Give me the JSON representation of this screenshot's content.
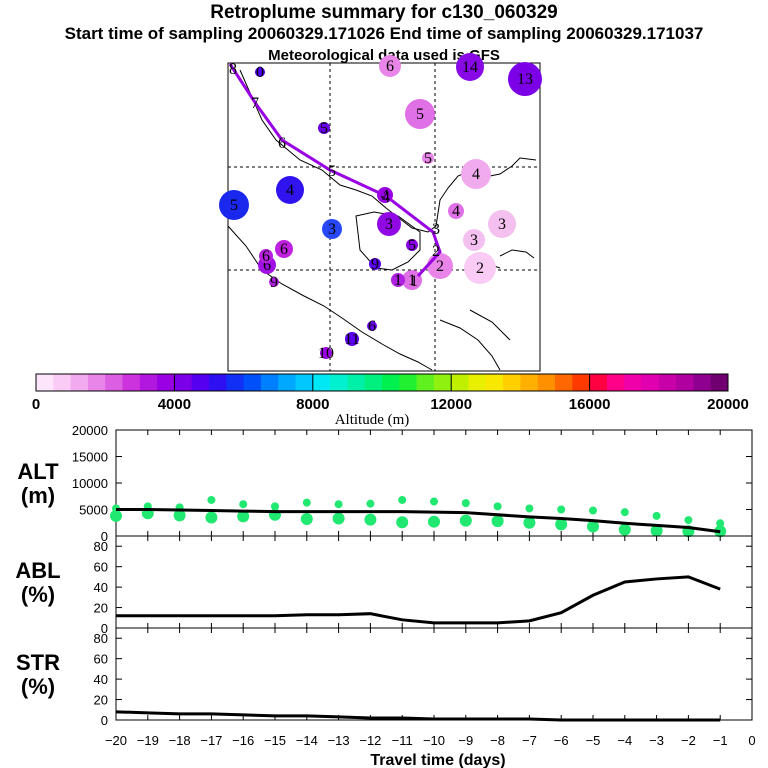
{
  "header": {
    "title": "Retroplume summary for c130_060329",
    "subtitle": "Start time of sampling 20060329.171026     End time of sampling 20060329.171037",
    "met": "Meteorological data used is GFS"
  },
  "colorbar": {
    "label": "Altitude (m)",
    "ticks": [
      "0",
      "4000",
      "8000",
      "12000",
      "16000",
      "20000"
    ],
    "colors": [
      "#fde6fb",
      "#f9cbf5",
      "#f2aaee",
      "#e985e8",
      "#dc5ee2",
      "#cc33dd",
      "#b217e0",
      "#9a00e4",
      "#7b00e8",
      "#5500ee",
      "#2f10f2",
      "#1030f6",
      "#0050fa",
      "#0080ff",
      "#00a8ff",
      "#00c8ff",
      "#00e8f4",
      "#00f0d0",
      "#00f0a8",
      "#00f080",
      "#00f050",
      "#20f030",
      "#60f020",
      "#90f010",
      "#c0f000",
      "#e8f000",
      "#f8e800",
      "#ffd000",
      "#ffb000",
      "#ff9000",
      "#ff6800",
      "#ff3a00",
      "#ff0040",
      "#ff0088",
      "#f000a8",
      "#e000b0",
      "#c800a8",
      "#b000a0",
      "#900090",
      "#700070"
    ]
  },
  "map_labels": {
    "trajectory": [
      "1",
      "2",
      "3",
      "4",
      "5",
      "6",
      "7",
      "8"
    ],
    "plume": [
      {
        "label": "5",
        "color": "#1a28ee"
      },
      {
        "label": "4",
        "color": "#3014f0"
      },
      {
        "label": "3",
        "color": "#2848f8"
      },
      {
        "label": "3",
        "color": "#9008e4"
      },
      {
        "label": "4",
        "color": "#9a00e4"
      },
      {
        "label": "6",
        "color": "#c020e0"
      },
      {
        "label": "5",
        "color": "#e070e6"
      },
      {
        "label": "4",
        "color": "#f2aaee"
      },
      {
        "label": "3",
        "color": "#f4c0f0"
      },
      {
        "label": "3",
        "color": "#f4c0f0"
      },
      {
        "label": "2",
        "color": "#f9cbf5"
      },
      {
        "label": "2",
        "color": "#e985e8"
      },
      {
        "label": "1",
        "color": "#e070e6"
      },
      {
        "label": "1",
        "color": "#b020e0"
      },
      {
        "label": "14",
        "color": "#8808e6"
      },
      {
        "label": "13",
        "color": "#7b00e8"
      },
      {
        "label": "6",
        "color": "#e985e8"
      },
      {
        "label": "5",
        "color": "#6a00ea"
      },
      {
        "label": "5",
        "color": "#e985e8"
      },
      {
        "label": "6",
        "color": "#a010e2"
      },
      {
        "label": "6",
        "color": "#b820e0"
      },
      {
        "label": "5",
        "color": "#8a00e6"
      },
      {
        "label": "4",
        "color": "#e070e6"
      },
      {
        "label": "9",
        "color": "#5a00ee"
      },
      {
        "label": "0",
        "color": "#5000ee"
      },
      {
        "label": "9",
        "color": "#b020e0"
      },
      {
        "label": "11",
        "color": "#5a00ee"
      },
      {
        "label": "10",
        "color": "#9a00e4"
      },
      {
        "label": "6",
        "color": "#6a00ea"
      }
    ]
  },
  "chart_data": [
    {
      "type": "scatter",
      "panel_label": "ALT",
      "unit": "(m)",
      "ylim": [
        0,
        20000
      ],
      "yticks": [
        "20000",
        "15000",
        "10000",
        "5000",
        "0"
      ],
      "xlim": [
        -20,
        0
      ],
      "x": [
        -20,
        -19,
        -18,
        -17,
        -16,
        -15,
        -14,
        -13,
        -12,
        -11,
        -10,
        -9,
        -8,
        -7,
        -6,
        -5,
        -4,
        -3,
        -2,
        -1
      ],
      "series": [
        {
          "name": "median altitude line",
          "values": [
            5000,
            5000,
            4900,
            4800,
            4700,
            4600,
            4600,
            4600,
            4600,
            4600,
            4500,
            4400,
            4000,
            3600,
            3300,
            2900,
            2400,
            2000,
            1600,
            800
          ]
        },
        {
          "name": "plume altitude samples",
          "color": "#20e870",
          "values": [
            [
              5200,
              3800
            ],
            [
              5600,
              4300
            ],
            [
              5400,
              3900
            ],
            [
              6800,
              3500
            ],
            [
              6000,
              3700
            ],
            [
              5600,
              4000
            ],
            [
              6300,
              3200
            ],
            [
              6000,
              3300
            ],
            [
              6100,
              3100
            ],
            [
              6800,
              2600
            ],
            [
              6500,
              2700
            ],
            [
              6200,
              2900
            ],
            [
              5600,
              2800
            ],
            [
              5200,
              2500
            ],
            [
              5000,
              2200
            ],
            [
              4800,
              1800
            ],
            [
              4500,
              1200
            ],
            [
              3800,
              1000
            ],
            [
              3000,
              900
            ],
            [
              2400,
              900
            ]
          ]
        }
      ]
    },
    {
      "type": "line",
      "panel_label": "ABL",
      "unit": "(%)",
      "ylim": [
        0,
        90
      ],
      "yticks": [
        "80",
        "60",
        "40",
        "20",
        "0"
      ],
      "x": [
        -20,
        -19,
        -18,
        -17,
        -16,
        -15,
        -14,
        -13,
        -12,
        -11,
        -10,
        -9,
        -8,
        -7,
        -6,
        -5,
        -4,
        -3,
        -2,
        -1
      ],
      "values": [
        12,
        12,
        12,
        12,
        12,
        12,
        13,
        13,
        14,
        8,
        5,
        5,
        5,
        7,
        15,
        32,
        45,
        48,
        50,
        38
      ]
    },
    {
      "type": "line",
      "panel_label": "STR",
      "unit": "(%)",
      "ylim": [
        0,
        90
      ],
      "yticks": [
        "80",
        "60",
        "40",
        "20",
        "0"
      ],
      "x": [
        -20,
        -19,
        -18,
        -17,
        -16,
        -15,
        -14,
        -13,
        -12,
        -11,
        -10,
        -9,
        -8,
        -7,
        -6,
        -5,
        -4,
        -3,
        -2,
        -1
      ],
      "values": [
        8,
        7,
        6,
        6,
        5,
        4,
        4,
        3,
        2,
        2,
        1,
        1,
        1,
        1,
        0,
        0,
        0,
        0,
        0,
        0
      ]
    }
  ],
  "xaxis": {
    "label": "Travel time (days)",
    "ticks": [
      "−20",
      "−19",
      "−18",
      "−17",
      "−16",
      "−15",
      "−14",
      "−13",
      "−12",
      "−11",
      "−10",
      "−9",
      "−8",
      "−7",
      "−6",
      "−5",
      "−4",
      "−3",
      "−2",
      "−1",
      "0"
    ]
  }
}
